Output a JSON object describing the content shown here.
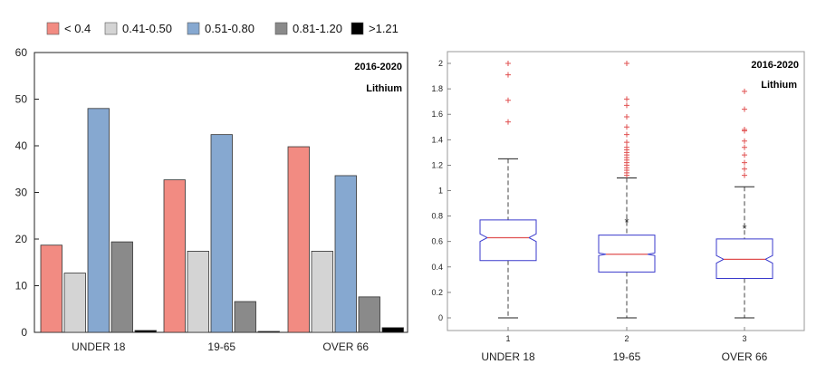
{
  "chart_data": [
    {
      "type": "bar",
      "categories": [
        "UNDER 18",
        "19-65",
        "OVER 66"
      ],
      "series": [
        {
          "name": "< 0.4",
          "color": "#f28b82",
          "values": [
            18.7,
            32.7,
            39.8
          ]
        },
        {
          "name": "0.41-0.50",
          "color": "#d4d4d4",
          "values": [
            12.7,
            17.4,
            17.4
          ]
        },
        {
          "name": "0.51-0.80",
          "color": "#86a8d0",
          "values": [
            48.0,
            42.4,
            33.6
          ]
        },
        {
          "name": "0.81-1.20",
          "color": "#8a8a8a",
          "values": [
            19.4,
            6.6,
            7.6
          ]
        },
        {
          "name": ">1.21",
          "color": "#000000",
          "values": [
            0.4,
            0.2,
            1.0
          ]
        }
      ],
      "ylim": [
        0,
        60
      ],
      "yticks": [
        0,
        10,
        20,
        30,
        40,
        50,
        60
      ],
      "annotations": [
        "2016-2020",
        "Lithium"
      ],
      "legend_position": "top",
      "grid": false
    },
    {
      "type": "box",
      "categories": [
        "UNDER 18",
        "19-65",
        "OVER 66"
      ],
      "xticks": [
        "1",
        "2",
        "3"
      ],
      "boxes": [
        {
          "whisker_low": 0,
          "q1": 0.45,
          "median": 0.63,
          "q3": 0.77,
          "whisker_high": 1.25,
          "notch_low": 0.6,
          "notch_high": 0.66,
          "mean": null,
          "outliers": [
            1.54,
            1.71,
            1.91,
            2.0
          ]
        },
        {
          "whisker_low": 0,
          "q1": 0.36,
          "median": 0.5,
          "q3": 0.65,
          "whisker_high": 1.1,
          "notch_low": 0.49,
          "notch_high": 0.51,
          "mean": 0.77,
          "outliers": [
            1.12,
            1.14,
            1.16,
            1.18,
            1.2,
            1.22,
            1.24,
            1.26,
            1.28,
            1.3,
            1.32,
            1.34,
            1.38,
            1.44,
            1.5,
            1.58,
            1.67,
            1.72,
            2.0
          ]
        },
        {
          "whisker_low": 0,
          "q1": 0.31,
          "median": 0.46,
          "q3": 0.62,
          "whisker_high": 1.03,
          "notch_low": 0.43,
          "notch_high": 0.49,
          "mean": 0.72,
          "outliers": [
            1.12,
            1.17,
            1.22,
            1.28,
            1.34,
            1.39,
            1.47,
            1.48,
            1.64,
            1.78
          ]
        }
      ],
      "ylim": [
        0,
        2
      ],
      "yticks": [
        "0",
        "0.2",
        "0.4",
        "0.6",
        "0.8",
        "1",
        "1.2",
        "1.4",
        "1.6",
        "1.8",
        "2"
      ],
      "annotations": [
        "2016-2020",
        "Lithium"
      ],
      "colors": {
        "box": "#3a3acc",
        "median": "#e05050",
        "outlier": "#e05050",
        "whisker": "#444444"
      },
      "grid": false
    }
  ]
}
